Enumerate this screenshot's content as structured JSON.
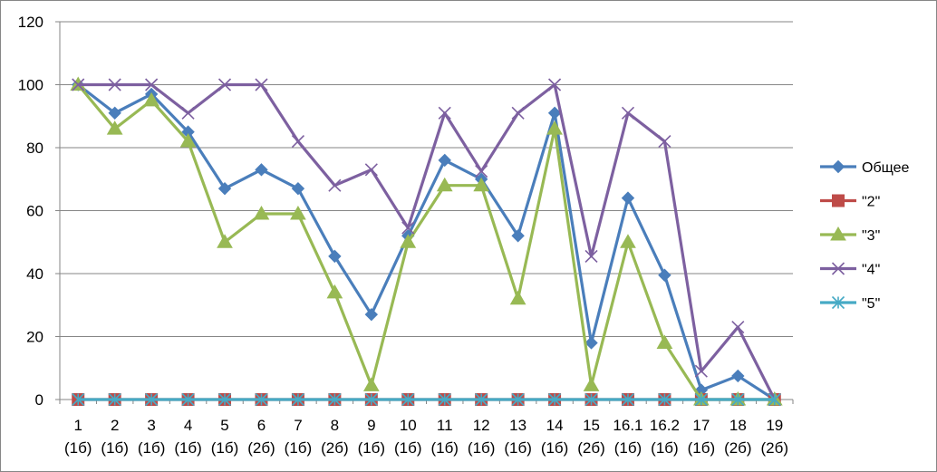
{
  "chart_data": {
    "type": "line",
    "title": "",
    "xlabel": "",
    "ylabel": "",
    "ylim": [
      0,
      120
    ],
    "yticks": [
      0,
      20,
      40,
      60,
      80,
      100,
      120
    ],
    "grid": true,
    "legend_position": "right",
    "categories": [
      {
        "num": "1",
        "sub": "(1б)"
      },
      {
        "num": "2",
        "sub": "(1б)"
      },
      {
        "num": "3",
        "sub": "(1б)"
      },
      {
        "num": "4",
        "sub": "(1б)"
      },
      {
        "num": "5",
        "sub": "(1б)"
      },
      {
        "num": "6",
        "sub": "(2б)"
      },
      {
        "num": "7",
        "sub": "(1б)"
      },
      {
        "num": "8",
        "sub": "(2б)"
      },
      {
        "num": "9",
        "sub": "(1б)"
      },
      {
        "num": "10",
        "sub": "(1б)"
      },
      {
        "num": "11",
        "sub": "(1б)"
      },
      {
        "num": "12",
        "sub": "(1б)"
      },
      {
        "num": "13",
        "sub": "(1б)"
      },
      {
        "num": "14",
        "sub": "(1б)"
      },
      {
        "num": "15",
        "sub": "(2б)"
      },
      {
        "num": "16.1",
        "sub": "(1б)"
      },
      {
        "num": "16.2",
        "sub": "(1б)"
      },
      {
        "num": "17",
        "sub": "(1б)"
      },
      {
        "num": "18",
        "sub": "(2б)"
      },
      {
        "num": "19",
        "sub": "(2б)"
      }
    ],
    "series": [
      {
        "name": "Общее",
        "color": "#4a7ebb",
        "marker": "diamond",
        "values": [
          100,
          91,
          97,
          85,
          67,
          73,
          67,
          45.5,
          27,
          52,
          76,
          70,
          52,
          91,
          18,
          64,
          39.5,
          3,
          7.5,
          0
        ]
      },
      {
        "name": "\"2\"",
        "color": "#be4b48",
        "marker": "square",
        "values": [
          0,
          0,
          0,
          0,
          0,
          0,
          0,
          0,
          0,
          0,
          0,
          0,
          0,
          0,
          0,
          0,
          0,
          0,
          0,
          0
        ]
      },
      {
        "name": "\"3\"",
        "color": "#98b954",
        "marker": "triangle",
        "values": [
          100,
          86,
          95,
          82,
          50,
          59,
          59,
          34,
          4.5,
          50,
          68,
          68,
          32,
          86,
          4.5,
          50,
          18,
          0,
          0,
          0
        ]
      },
      {
        "name": "\"4\"",
        "color": "#7d60a0",
        "marker": "x",
        "values": [
          100,
          100,
          100,
          91,
          100,
          100,
          82,
          68,
          73,
          54.5,
          91,
          72.5,
          91,
          100,
          45.5,
          91,
          82,
          9,
          23,
          0
        ]
      },
      {
        "name": "\"5\"",
        "color": "#46aac5",
        "marker": "star",
        "values": [
          0,
          0,
          0,
          0,
          0,
          0,
          0,
          0,
          0,
          0,
          0,
          0,
          0,
          0,
          0,
          0,
          0,
          0,
          0,
          0
        ]
      }
    ]
  }
}
